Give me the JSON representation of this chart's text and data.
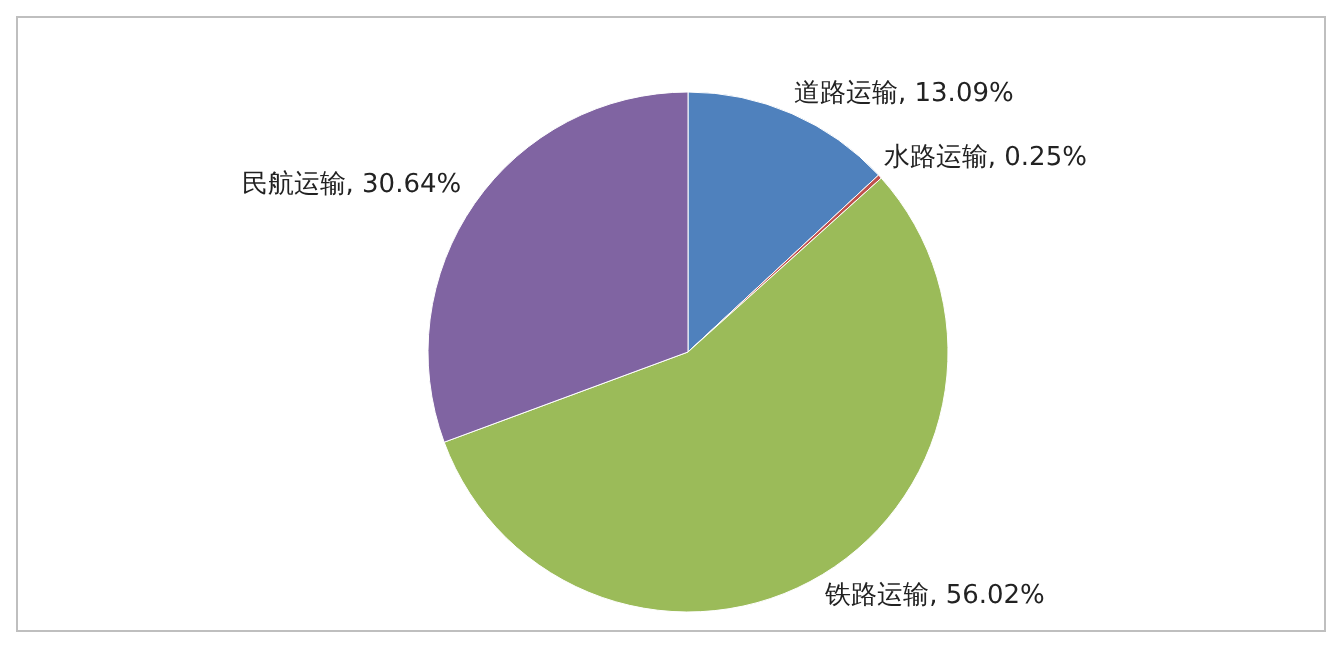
{
  "chart_data": {
    "type": "pie",
    "categories": [
      "道路运输",
      "水路运输",
      "铁路运输",
      "民航运输"
    ],
    "values": [
      13.09,
      0.25,
      56.02,
      30.64
    ],
    "colors": [
      "#4f81bd",
      "#c0504d",
      "#9bbb59",
      "#8064a2"
    ],
    "value_labels": [
      ", 13.09%",
      ", 0.25%",
      ", 56.02%",
      ", 30.64%"
    ]
  }
}
